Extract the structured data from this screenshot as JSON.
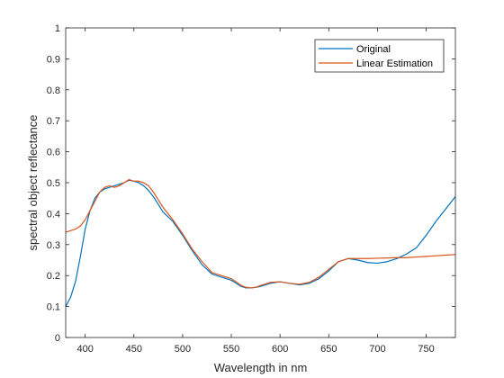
{
  "chart_data": {
    "type": "line",
    "title": "",
    "xlabel": "Wavelength in nm",
    "ylabel": "spectral object reflectance",
    "xlim": [
      380,
      780
    ],
    "ylim": [
      0,
      1
    ],
    "x_ticks": [
      400,
      450,
      500,
      550,
      600,
      650,
      700,
      750
    ],
    "y_ticks": [
      0,
      0.1,
      0.2,
      0.3,
      0.4,
      0.5,
      0.6,
      0.7,
      0.8,
      0.9,
      1
    ],
    "y_tick_labels": [
      "0",
      "0.1",
      "0.2",
      "0.3",
      "0.4",
      "0.5",
      "0.6",
      "0.7",
      "0.8",
      "0.9",
      "1"
    ],
    "grid": false,
    "legend_position": "top-right",
    "series": [
      {
        "name": "Original",
        "color": "#0072BD",
        "x": [
          380,
          385,
          390,
          395,
          400,
          405,
          410,
          415,
          420,
          425,
          430,
          435,
          440,
          445,
          450,
          455,
          460,
          465,
          470,
          475,
          480,
          490,
          500,
          510,
          520,
          530,
          540,
          550,
          555,
          560,
          565,
          570,
          575,
          580,
          590,
          600,
          610,
          620,
          630,
          640,
          650,
          660,
          670,
          680,
          690,
          700,
          710,
          720,
          730,
          740,
          750,
          760,
          770,
          780
        ],
        "y": [
          0.1,
          0.13,
          0.18,
          0.26,
          0.35,
          0.41,
          0.45,
          0.47,
          0.48,
          0.485,
          0.49,
          0.495,
          0.5,
          0.508,
          0.505,
          0.5,
          0.49,
          0.475,
          0.455,
          0.43,
          0.405,
          0.375,
          0.33,
          0.28,
          0.235,
          0.205,
          0.195,
          0.185,
          0.175,
          0.165,
          0.16,
          0.16,
          0.162,
          0.165,
          0.175,
          0.18,
          0.175,
          0.17,
          0.175,
          0.19,
          0.215,
          0.245,
          0.255,
          0.25,
          0.242,
          0.24,
          0.245,
          0.255,
          0.27,
          0.29,
          0.33,
          0.375,
          0.415,
          0.455
        ]
      },
      {
        "name": "Linear Estimation",
        "color": "#D95319",
        "x": [
          380,
          385,
          390,
          395,
          400,
          405,
          410,
          415,
          420,
          425,
          430,
          435,
          440,
          445,
          450,
          455,
          460,
          465,
          470,
          475,
          480,
          490,
          500,
          510,
          520,
          530,
          540,
          550,
          555,
          560,
          565,
          570,
          575,
          580,
          590,
          600,
          610,
          620,
          630,
          640,
          650,
          660,
          670,
          680,
          690,
          700,
          710,
          720,
          730,
          740,
          750,
          760,
          770,
          780
        ],
        "y": [
          0.34,
          0.345,
          0.35,
          0.36,
          0.38,
          0.41,
          0.44,
          0.47,
          0.485,
          0.49,
          0.485,
          0.49,
          0.5,
          0.51,
          0.505,
          0.505,
          0.5,
          0.49,
          0.47,
          0.445,
          0.42,
          0.38,
          0.335,
          0.285,
          0.245,
          0.21,
          0.2,
          0.19,
          0.18,
          0.168,
          0.162,
          0.16,
          0.162,
          0.168,
          0.178,
          0.18,
          0.175,
          0.172,
          0.178,
          0.195,
          0.22,
          0.245,
          0.255,
          0.255,
          0.255,
          0.256,
          0.257,
          0.258,
          0.258,
          0.26,
          0.262,
          0.264,
          0.266,
          0.268
        ]
      }
    ]
  }
}
